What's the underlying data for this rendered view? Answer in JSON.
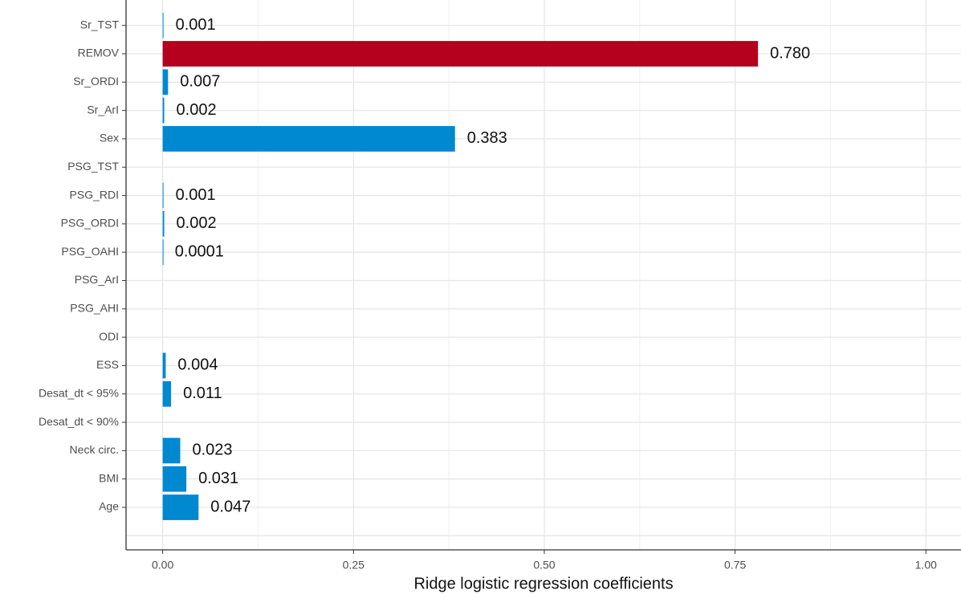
{
  "chart_data": {
    "type": "bar",
    "orientation": "horizontal",
    "x_label": "Ridge logistic regression coefficients",
    "categories": [
      "Sr_TST",
      "REMOV",
      "Sr_ORDI",
      "Sr_ArI",
      "Sex",
      "PSG_TST",
      "PSG_RDI",
      "PSG_ORDI",
      "PSG_OAHI",
      "PSG_ArI",
      "PSG_AHI",
      "ODI",
      "ESS",
      "Desat_dt < 95%",
      "Desat_dt < 90%",
      "Neck circ.",
      "BMI",
      "Age",
      null
    ],
    "values": [
      0.001,
      0.78,
      0.007,
      0.002,
      0.383,
      null,
      0.001,
      0.002,
      0.0001,
      null,
      null,
      null,
      0.004,
      0.011,
      null,
      0.023,
      0.031,
      0.047,
      null
    ],
    "value_labels": [
      "0.001",
      "0.780",
      "0.007",
      "0.002",
      "0.383",
      null,
      "0.001",
      "0.002",
      "0.0001",
      null,
      null,
      null,
      "0.004",
      "0.011",
      null,
      "0.023",
      "0.031",
      "0.047",
      null
    ],
    "colors": [
      "#0088d1",
      "#b5001e",
      "#0088d1",
      "#0088d1",
      "#0088d1",
      "#0088d1",
      "#0088d1",
      "#0088d1",
      "#0088d1",
      "#0088d1",
      "#0088d1",
      "#0088d1",
      "#0088d1",
      "#0088d1",
      "#0088d1",
      "#0088d1",
      "#0088d1",
      "#0088d1",
      "#0088d1"
    ],
    "xlim": [
      -0.048,
      1.046
    ],
    "xticks": [
      {
        "value": 0,
        "label": "0.00"
      },
      {
        "value": 0.25,
        "label": "0.25"
      },
      {
        "value": 0.5,
        "label": "0.50"
      },
      {
        "value": 0.75,
        "label": "0.75"
      },
      {
        "value": 1,
        "label": "1.00"
      }
    ],
    "grid": true
  }
}
